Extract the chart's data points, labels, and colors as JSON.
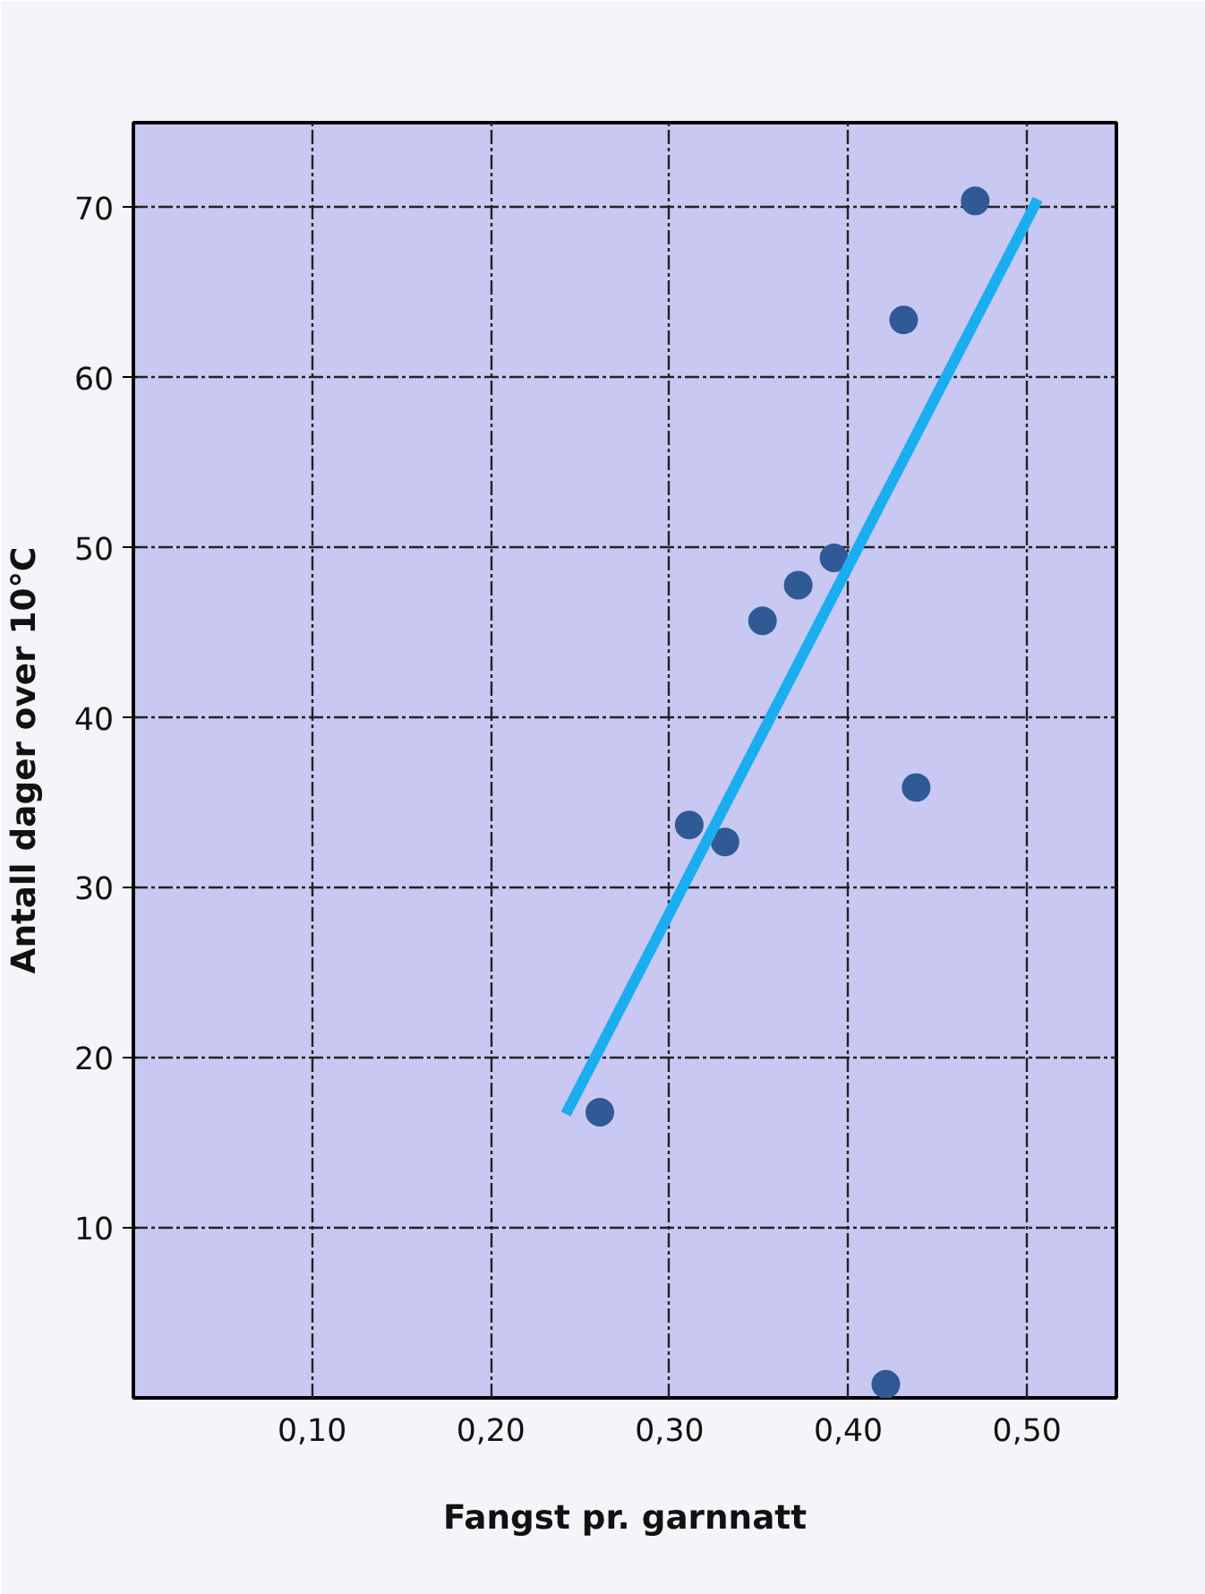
{
  "chart_data": {
    "type": "scatter",
    "xlabel": "Fangst pr. garnnatt",
    "ylabel": "Antall dager over 10°C",
    "xlim": [
      0,
      0.55
    ],
    "ylim": [
      0,
      75
    ],
    "xticks": [
      {
        "value": 0.1,
        "label": "0,10"
      },
      {
        "value": 0.2,
        "label": "0,20"
      },
      {
        "value": 0.3,
        "label": "0,30"
      },
      {
        "value": 0.4,
        "label": "0,40"
      },
      {
        "value": 0.5,
        "label": "0,50"
      }
    ],
    "yticks": [
      10,
      20,
      30,
      40,
      50,
      60,
      70
    ],
    "grid": true,
    "marker": "circle",
    "series": [
      {
        "color": "#2f5a96",
        "x": [
          0.471,
          0.431,
          0.392,
          0.372,
          0.352,
          0.438,
          0.311,
          0.331,
          0.261,
          0.421
        ],
        "values": [
          70.4,
          63.4,
          49.4,
          47.8,
          45.7,
          35.9,
          33.7,
          32.7,
          16.8,
          0.8
        ]
      },
      {
        "type": "line",
        "marker": "none",
        "color": "#1aaef0",
        "x": [
          0.242,
          0.506
        ],
        "values": [
          16.7,
          70.5
        ]
      }
    ]
  }
}
